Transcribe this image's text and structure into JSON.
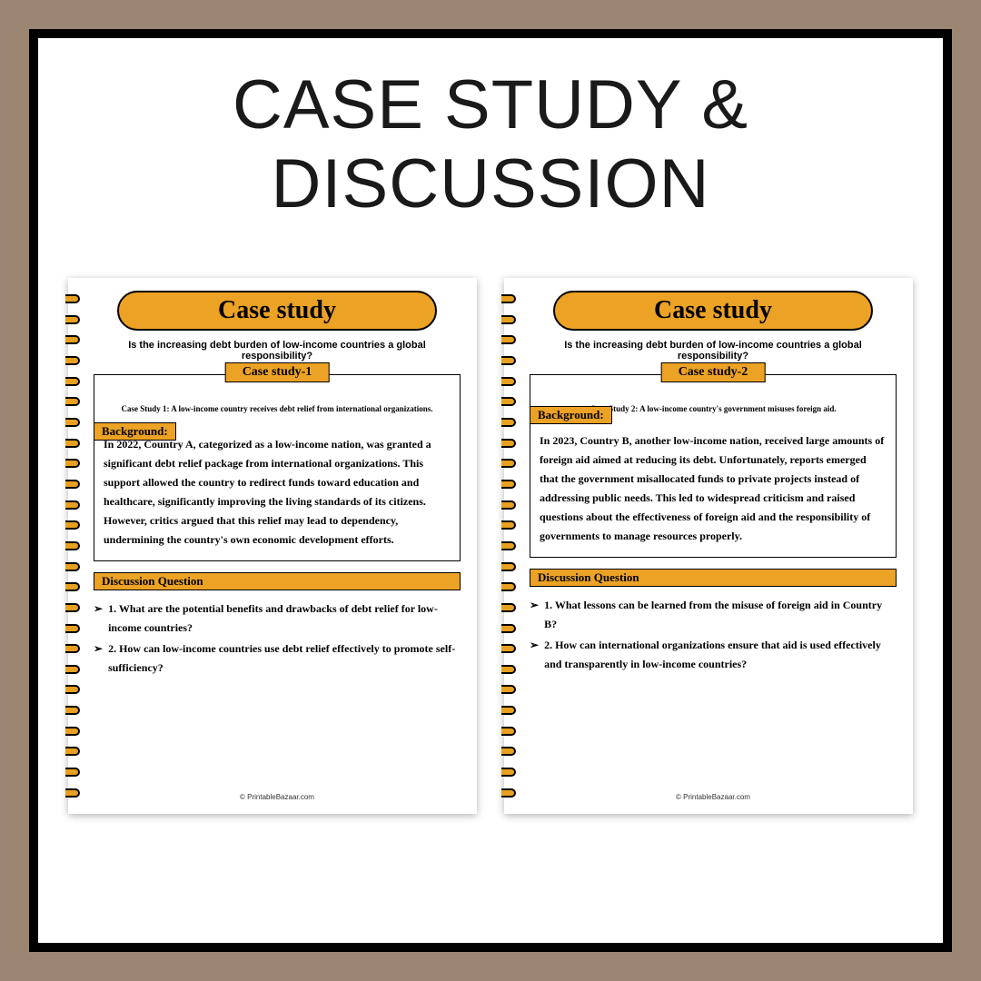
{
  "main_title": "Case study & Discussion",
  "colors": {
    "outer_bg": "#9b8673",
    "frame_bg": "#ffffff",
    "frame_border": "#000000",
    "accent": "#eca224",
    "text": "#000000"
  },
  "pages": [
    {
      "banner": "Case study",
      "subtitle": "Is the increasing debt burden of low-income countries a global responsibility?",
      "case_tab": "Case study-1",
      "case_intro": "Case Study 1: A low-income country receives debt relief from international organizations.",
      "bg_label": "Background:",
      "bg_text": "In 2022, Country A, categorized as a low-income nation, was granted a significant debt relief package from international organizations. This support allowed the country to redirect funds toward education and healthcare, significantly improving the living standards of its citizens. However, critics argued that this relief may lead to dependency, undermining the country's own economic development efforts.",
      "dq_label": "Discussion Question",
      "questions": [
        "1. What are the potential benefits and drawbacks of debt relief for low-income countries?",
        "2. How can low-income countries use debt relief effectively to promote self-sufficiency?"
      ],
      "footer": "© PrintableBazaar.com"
    },
    {
      "banner": "Case study",
      "subtitle": "Is the increasing debt burden of low-income countries a global responsibility?",
      "case_tab": "Case study-2",
      "case_intro": "Case Study 2: A low-income country's government misuses foreign aid.",
      "bg_label": "Background:",
      "bg_text": "In 2023, Country B, another low-income nation, received large amounts of foreign aid aimed at reducing its debt. Unfortunately, reports emerged that the government misallocated funds to private projects instead of addressing public needs. This led to widespread criticism and raised questions about the effectiveness of foreign aid and the responsibility of governments to manage resources properly.",
      "dq_label": "Discussion Question",
      "questions": [
        "1. What lessons can be learned from the misuse of foreign aid in Country B?",
        "2. How can international organizations ensure that aid is used effectively and transparently in low-income countries?"
      ],
      "footer": "© PrintableBazaar.com"
    }
  ]
}
